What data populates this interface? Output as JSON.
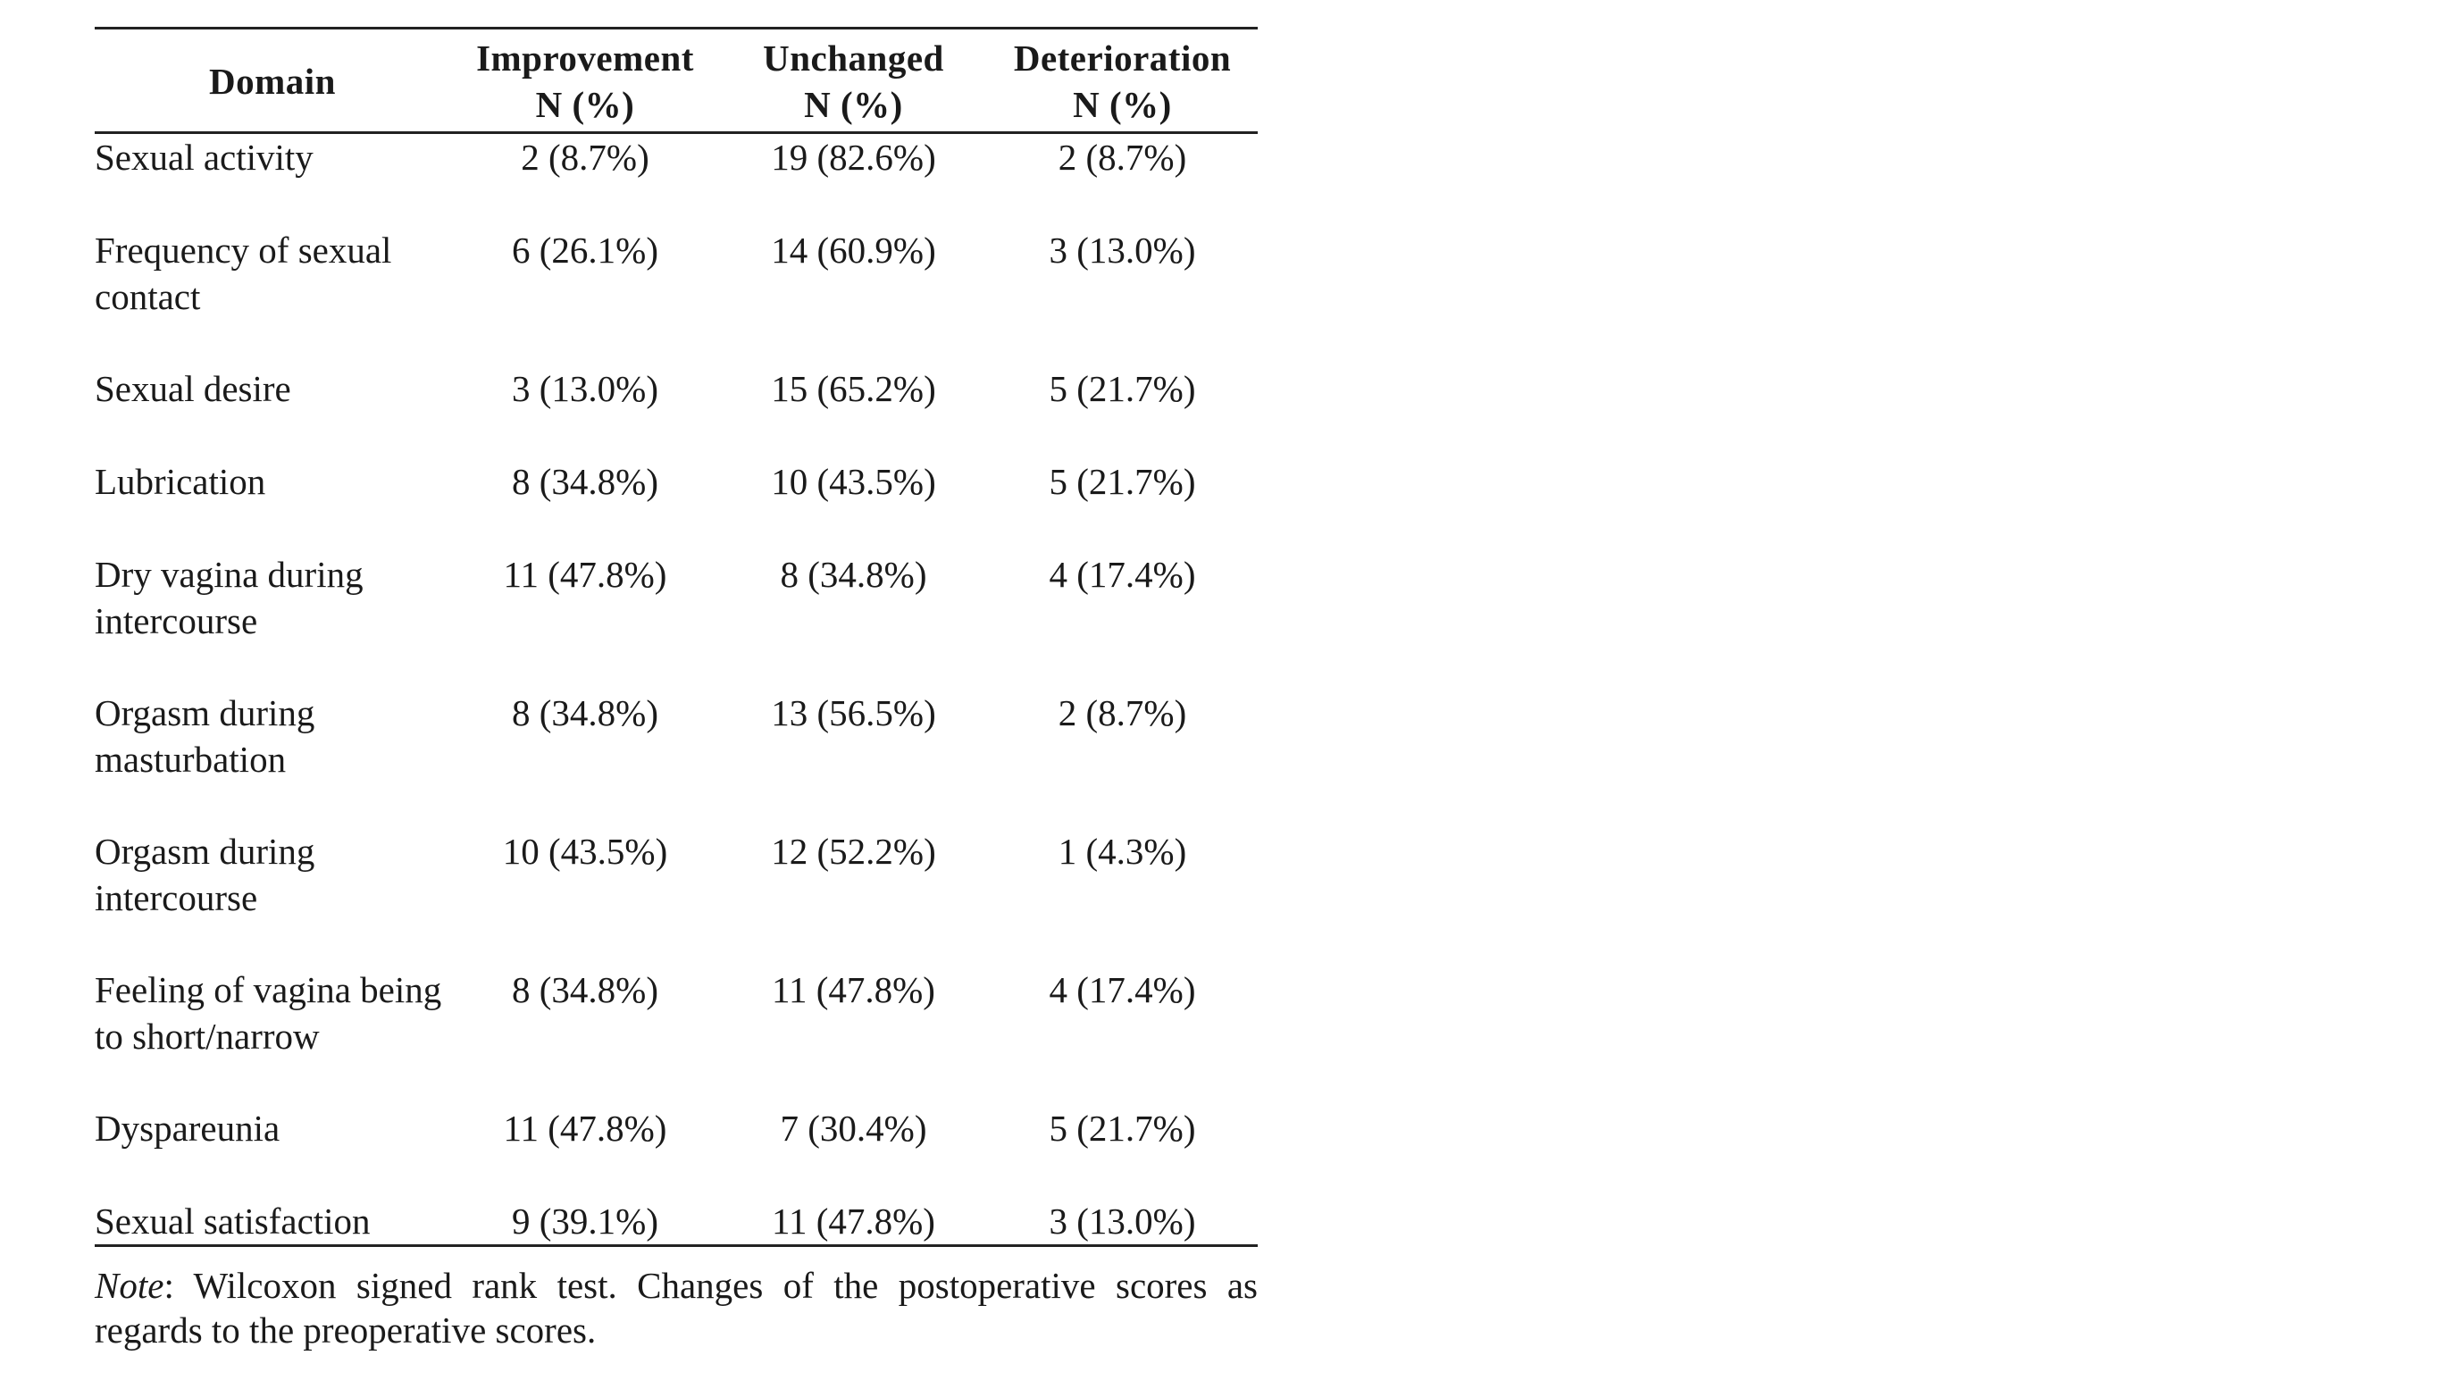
{
  "table": {
    "headers": {
      "domain": "Domain",
      "improvement": [
        "Improvement",
        "N (%)"
      ],
      "unchanged": [
        "Unchanged",
        "N (%)"
      ],
      "deterioration": [
        "Deterioration",
        "N (%)"
      ]
    },
    "rows": [
      {
        "domain": "Sexual activity",
        "improvement": "2 (8.7%)",
        "unchanged": "19 (82.6%)",
        "deterioration": "2 (8.7%)"
      },
      {
        "domain": "Frequency of sexual contact",
        "improvement": "6 (26.1%)",
        "unchanged": "14 (60.9%)",
        "deterioration": "3 (13.0%)"
      },
      {
        "domain": "Sexual desire",
        "improvement": "3 (13.0%)",
        "unchanged": "15 (65.2%)",
        "deterioration": "5 (21.7%)"
      },
      {
        "domain": "Lubrication",
        "improvement": "8 (34.8%)",
        "unchanged": "10 (43.5%)",
        "deterioration": "5 (21.7%)"
      },
      {
        "domain": "Dry vagina during intercourse",
        "improvement": "11 (47.8%)",
        "unchanged": "8 (34.8%)",
        "deterioration": "4 (17.4%)"
      },
      {
        "domain": "Orgasm during masturbation",
        "improvement": "8 (34.8%)",
        "unchanged": "13 (56.5%)",
        "deterioration": "2 (8.7%)"
      },
      {
        "domain": "Orgasm during intercourse",
        "improvement": "10 (43.5%)",
        "unchanged": "12 (52.2%)",
        "deterioration": "1 (4.3%)"
      },
      {
        "domain": "Feeling of vagina being to short/narrow",
        "improvement": "8 (34.8%)",
        "unchanged": "11 (47.8%)",
        "deterioration": "4 (17.4%)"
      },
      {
        "domain": "Dyspareunia",
        "improvement": "11 (47.8%)",
        "unchanged": "7 (30.4%)",
        "deterioration": "5 (21.7%)"
      },
      {
        "domain": "Sexual satisfaction",
        "improvement": "9 (39.1%)",
        "unchanged": "11 (47.8%)",
        "deterioration": "3 (13.0%)"
      }
    ]
  },
  "note": {
    "label": "Note",
    "text": ": Wilcoxon signed rank test. Changes of the postoperative scores as regards to the preoperative scores."
  }
}
